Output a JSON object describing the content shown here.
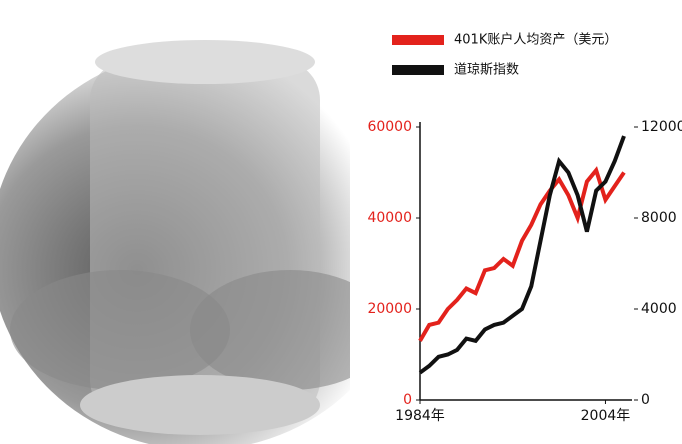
{
  "chart_data": {
    "type": "line",
    "x": [
      1984,
      1985,
      1986,
      1987,
      1988,
      1989,
      1990,
      1991,
      1992,
      1993,
      1994,
      1995,
      1996,
      1997,
      1998,
      1999,
      2000,
      2001,
      2002,
      2003,
      2004,
      2005,
      2006
    ],
    "series": [
      {
        "name": "401K账户人均资产（美元）",
        "color": "#e3221c",
        "values": [
          13000,
          16500,
          17000,
          20000,
          22000,
          24500,
          23500,
          28500,
          29000,
          31000,
          29500,
          35000,
          38500,
          43000,
          46000,
          48500,
          45000,
          40000,
          48000,
          50500,
          44000,
          47000,
          50000
        ]
      },
      {
        "name": "道琼斯指数",
        "color": "#111111",
        "axis": "y2",
        "values": [
          1200,
          1500,
          1900,
          2000,
          2200,
          2700,
          2600,
          3100,
          3300,
          3400,
          3700,
          4000,
          5000,
          7000,
          9000,
          10500,
          10000,
          9000,
          7400,
          9200,
          9600,
          10500,
          11600
        ]
      }
    ],
    "xlim": [
      1984,
      2006
    ],
    "xticks": [
      {
        "value": 1984,
        "label": "1984年"
      },
      {
        "value": 2004,
        "label": "2004年"
      }
    ],
    "ylim": [
      0,
      60000
    ],
    "yticks": [
      0,
      20000,
      40000,
      60000
    ],
    "y2lim": [
      0,
      12000
    ],
    "y2ticks": [
      0,
      4000,
      8000,
      12000
    ],
    "legend": "top-right"
  }
}
